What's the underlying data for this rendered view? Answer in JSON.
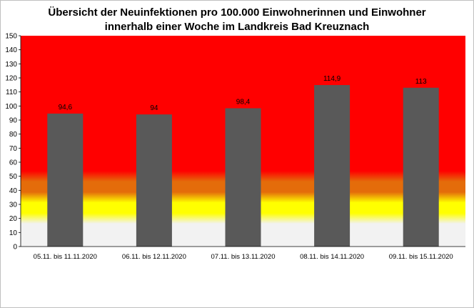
{
  "chart_data": {
    "type": "bar",
    "title_line1": "Übersicht der Neuinfektionen pro 100.000 Einwohnerinnen und Einwohner",
    "title_line2": "innerhalb einer Woche im Landkreis Bad Kreuznach",
    "xlabel": "",
    "ylabel": "",
    "categories": [
      "05.11. bis 11.11.2020",
      "06.11. bis 12.11.2020",
      "07.11. bis 13.11.2020",
      "08.11. bis 14.11.2020",
      "09.11. bis 15.11.2020"
    ],
    "values": [
      94.6,
      94,
      98.4,
      114.9,
      113
    ],
    "value_labels": [
      "94,6",
      "94",
      "98,4",
      "114,9",
      "113"
    ],
    "ylim": [
      0,
      150
    ],
    "yticks": [
      0,
      10,
      20,
      30,
      40,
      50,
      60,
      70,
      80,
      90,
      100,
      110,
      120,
      130,
      140,
      150
    ],
    "grid": false,
    "bar_color": "#595959",
    "background_bands": [
      {
        "from": 0,
        "to": 20,
        "color": "#f2f2f2"
      },
      {
        "from": 20,
        "to": 35,
        "color": "#ffff00"
      },
      {
        "from": 35,
        "to": 50,
        "color": "#e46c0a"
      },
      {
        "from": 50,
        "to": 150,
        "color": "#ff0000"
      }
    ]
  }
}
